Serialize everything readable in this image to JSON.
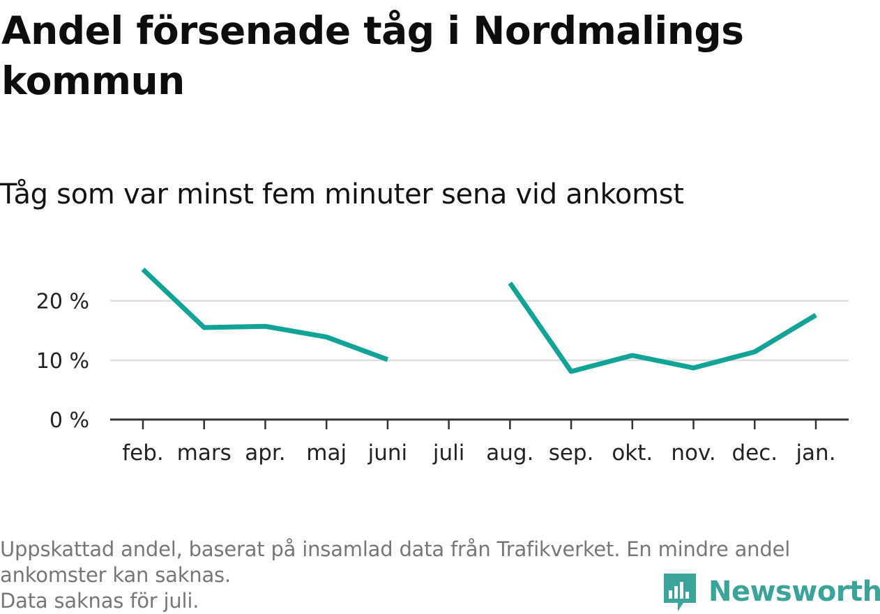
{
  "title": "Andel försenade tåg i Nordmalings kommun",
  "subtitle": "Tåg som var minst fem minuter sena vid ankomst",
  "notes": [
    "Uppskattad andel, baserat på insamlad data från Trafikverket. En mindre andel",
    "ankomster kan saknas.",
    "Data saknas för juli."
  ],
  "brand": {
    "name": "Newsworthy",
    "logo_icon": "bar-chart-icon",
    "color": "#3aa39a"
  },
  "chart_data": {
    "type": "line",
    "categories": [
      "feb.",
      "mars",
      "apr.",
      "maj",
      "juni",
      "juli",
      "aug.",
      "sep.",
      "okt.",
      "nov.",
      "dec.",
      "jan."
    ],
    "series": [
      {
        "values": [
          25.3,
          15.5,
          15.7,
          13.9,
          10.1,
          null,
          23.0,
          8.1,
          10.8,
          8.7,
          11.4,
          17.6
        ],
        "color": "#10a396"
      }
    ],
    "yticks": [
      {
        "value": 0,
        "label": "0 %"
      },
      {
        "value": 10,
        "label": "10 %"
      },
      {
        "value": 20,
        "label": "20 %"
      }
    ],
    "ylim": [
      0,
      27
    ],
    "grid": true,
    "gridColor": "#dddddd",
    "axisColor": "#333333"
  }
}
